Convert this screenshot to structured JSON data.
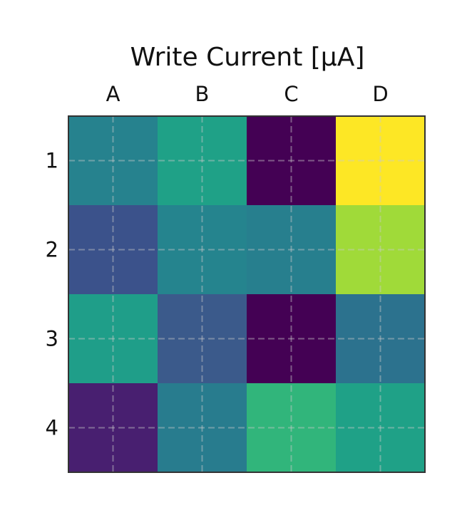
{
  "chart_data": {
    "type": "heatmap",
    "title": "Write Current [μA]",
    "x_categories": [
      "A",
      "B",
      "C",
      "D"
    ],
    "y_categories": [
      "1",
      "2",
      "3",
      "4"
    ],
    "colors": [
      [
        "#26828e",
        "#1fa187",
        "#440154",
        "#fde725"
      ],
      [
        "#3b528b",
        "#25848e",
        "#277f8e",
        "#a0da39"
      ],
      [
        "#1f9e89",
        "#3b5a8b",
        "#440154",
        "#2c728e"
      ],
      [
        "#481f70",
        "#287c8e",
        "#31b57b",
        "#1fa187"
      ]
    ],
    "grid": true,
    "grid_style": "dashed",
    "colorbar": false,
    "colormap": "viridis"
  }
}
